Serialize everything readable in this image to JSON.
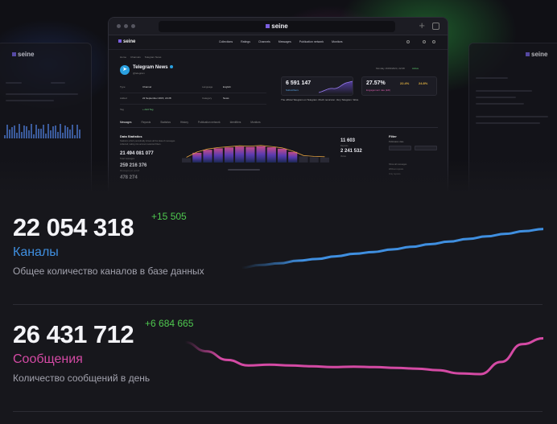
{
  "hero": {
    "brand": "seine",
    "nav_links": [
      "Collections",
      "Ratings",
      "Channels",
      "Messages",
      "Publication network",
      "Monitors"
    ],
    "breadcrumbs": [
      "Home",
      "Channels",
      "Telegram News"
    ],
    "channel": {
      "name": "Telegram News",
      "subtitle": "@telegram"
    },
    "info": {
      "type_label": "Type",
      "type_value": "Channel",
      "language_label": "Language",
      "language_value": "English",
      "added_label": "Added",
      "added_value": "22 September 2015, 22:28",
      "category_label": "Category",
      "category_value": "News",
      "tag_label": "Tag",
      "add_tag": "+ Add Tag"
    },
    "date_status": "Monday 16/09/2024, 22:08",
    "status_badge": "Active",
    "subscribers": {
      "value": "6 591 147",
      "label": "Subscribers"
    },
    "engagement": {
      "value": "27.57%",
      "label": "Engagement rate (ER)"
    },
    "pct_a": "22.4%",
    "pct_b": "24.8%",
    "description": "The official Telegram on Telegram. Much recursion. Very Telegram. Wow.",
    "subtabs": [
      "Messages",
      "Reposts",
      "Statistics",
      "History",
      "Publication network",
      "Identifiers",
      "Monitors"
    ],
    "data_stats": {
      "title": "Data Statistics",
      "desc": "Statistics which periodically shows all the data of messages collected, taking into account selected filters.",
      "total": "21 494 081 077",
      "total_label": "Total messages",
      "second": "259 216 376",
      "second_label": "Messages per period",
      "third": "478 274",
      "third_label": "Average per day"
    },
    "right_stats": {
      "first": "11 603",
      "first_label": "Reposts",
      "second": "2 241 532",
      "second_label": "Views"
    },
    "filter": {
      "title": "Filter",
      "items": [
        "Publication date",
        "Show all messages",
        "Without reposts",
        "Only reposts"
      ]
    }
  },
  "stats": [
    {
      "value": "22 054 318",
      "delta": "+15 505",
      "label": "Каналы",
      "description": "Общее количество каналов в базе данных",
      "color": "#3f8fe0",
      "trend": [
        0.08,
        0.14,
        0.18,
        0.24,
        0.28,
        0.34,
        0.4,
        0.44,
        0.5,
        0.56,
        0.62,
        0.68,
        0.74,
        0.8,
        0.86,
        0.92,
        0.97
      ]
    },
    {
      "value": "26 431 712",
      "delta": "+6 684 665",
      "label": "Сообщения",
      "description": "Количество сообщений в день",
      "color": "#d44aa4",
      "trend": [
        0.85,
        0.62,
        0.4,
        0.26,
        0.28,
        0.26,
        0.24,
        0.22,
        0.23,
        0.22,
        0.2,
        0.18,
        0.14,
        0.06,
        0.04,
        0.35,
        0.8,
        0.95
      ]
    }
  ],
  "mini_chart": {
    "bars": [
      0.25,
      0.55,
      0.72,
      0.8,
      0.85,
      0.9,
      0.88,
      0.92,
      0.86,
      0.78,
      0.6,
      0.35,
      0.3,
      0.28
    ]
  }
}
